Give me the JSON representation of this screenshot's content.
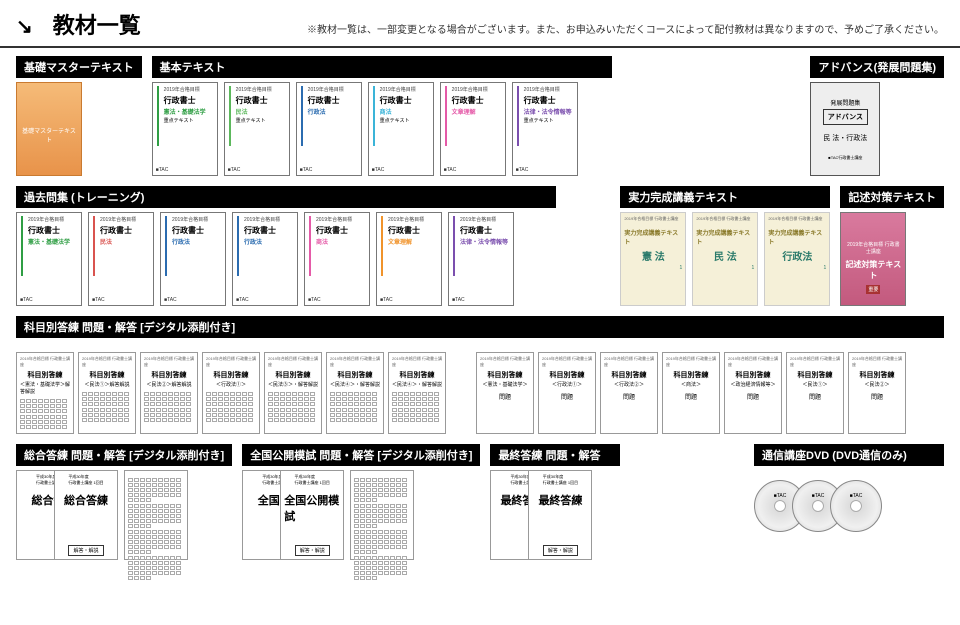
{
  "header": {
    "arrow": "↘",
    "title": "教材一覧",
    "note": "※教材一覧は、一部変更となる場合がございます。また、お申込みいただくコースによって配付教材は異なりますので、予めご了承ください。"
  },
  "sections": {
    "kiso": "基礎マスターテキスト",
    "kihon": "基本テキスト",
    "advance": "アドバンス(発展問題集)",
    "kako": "過去問集 (トレーニング)",
    "jitsuryoku": "実力完成講義テキスト",
    "kijutsu": "記述対策テキスト",
    "kamoku": "科目別答練 問題・解答 [デジタル添削付き]",
    "sogo": "総合答練 問題・解答 [デジタル添削付き]",
    "zenkoku": "全国公開模試 問題・解答 [デジタル添削付き]",
    "saishu": "最終答練 問題・解答",
    "dvd": "通信講座DVD (DVD通信のみ)"
  },
  "colors": {
    "green": "#2f9e44",
    "green2": "#5cb85c",
    "blue": "#2b6cb0",
    "cyan": "#3bb4d8",
    "red": "#d9534f",
    "pink": "#e55aa8",
    "purple": "#7b4fae",
    "orange": "#f0932b"
  },
  "kihon_books": [
    {
      "title": "行政書士",
      "sub": "憲法・基礎法学",
      "color": "green",
      "bottom": "重点テキスト"
    },
    {
      "title": "行政書士",
      "sub": "民法",
      "color": "green2",
      "bottom": "重点テキスト"
    },
    {
      "title": "行政書士",
      "sub": "行政法",
      "color": "blue",
      "bottom": ""
    },
    {
      "title": "行政書士",
      "sub": "商法",
      "color": "cyan",
      "bottom": "重点テキスト"
    },
    {
      "title": "行政書士",
      "sub": "文章理解",
      "color": "pink",
      "bottom": ""
    },
    {
      "title": "行政書士",
      "sub": "法律・法令情報等",
      "color": "purple",
      "bottom": "重点テキスト"
    }
  ],
  "kako_books": [
    {
      "title": "行政書士",
      "sub": "憲法・基礎法学",
      "color": "green"
    },
    {
      "title": "行政書士",
      "sub": "民法",
      "color": "red"
    },
    {
      "title": "行政書士",
      "sub": "行政法",
      "color": "blue"
    },
    {
      "title": "行政書士",
      "sub": "行政法",
      "color": "blue"
    },
    {
      "title": "行政書士",
      "sub": "商法",
      "color": "pink"
    },
    {
      "title": "行政書士",
      "sub": "文章理解",
      "color": "orange"
    },
    {
      "title": "行政書士",
      "sub": "法律・法令情報等",
      "color": "purple"
    }
  ],
  "advance_book": {
    "label1": "発展問題集",
    "label2": "アドバンス",
    "label3": "民 法・行政法"
  },
  "jitsuryoku_books": [
    {
      "label": "実力完成講義テキスト",
      "sub": "憲 法"
    },
    {
      "label": "実力完成講義テキスト",
      "sub": "民 法"
    },
    {
      "label": "実力完成講義テキスト",
      "sub": "行政法"
    }
  ],
  "kijutsu_book": {
    "label": "記述対策テキスト"
  },
  "kamoku_sheets_left": [
    "科目別答練\n＜憲法・基礎法学＞解答解説",
    "科目別答練\n＜民法①＞解答解説",
    "科目別答練\n＜民法②＞解答解説",
    "科目別答練\n＜行政法①＞",
    "科目別答練\n＜民法③＞・解答解説",
    "科目別答練\n＜民法④＞・解答解説",
    "科目別答練\n＜民法④＞・解答解説"
  ],
  "kamoku_sheets_right": [
    {
      "t": "科目別答練",
      "s": "＜憲法・基礎法学＞",
      "b": "問題"
    },
    {
      "t": "科目別答練",
      "s": "＜行政法①＞",
      "b": "問題"
    },
    {
      "t": "科目別答練",
      "s": "＜行政法②＞",
      "b": "問題"
    },
    {
      "t": "科目別答練",
      "s": "＜商法＞",
      "b": "問題"
    },
    {
      "t": "科目別答練",
      "s": "＜政治経済情報等＞",
      "b": "問題"
    },
    {
      "t": "科目別答練",
      "s": "＜民法①＞",
      "b": "問題"
    },
    {
      "t": "科目別答練",
      "s": "＜民法②＞",
      "b": "問題"
    }
  ],
  "sogo_sheets": [
    {
      "t": "総合答練",
      "t2": "総合答"
    },
    {
      "t": "総合答練",
      "t2": ""
    }
  ],
  "zenkoku_sheets": [
    "全国公開模試",
    "全国公"
  ],
  "saishu_sheet": "最終答練",
  "brand": "■TAC",
  "kaito": "解答・解説"
}
